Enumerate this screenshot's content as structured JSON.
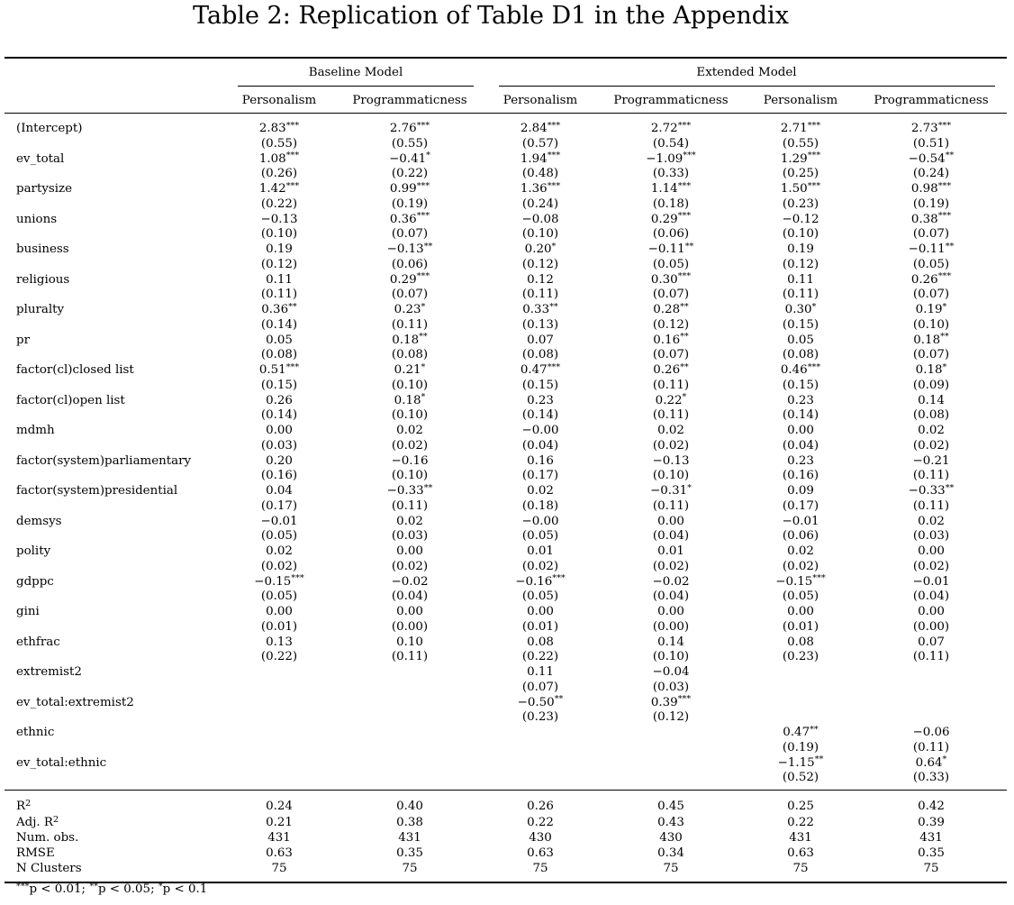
{
  "title": "Table 2:  Replication of Table D1 in the Appendix",
  "groups": [
    {
      "label": "Baseline Model"
    },
    {
      "label": "Extended Model"
    }
  ],
  "columns": [
    "Personalism",
    "Programmaticness",
    "Personalism",
    "Programmaticness",
    "Personalism",
    "Programmaticness"
  ],
  "rows": [
    {
      "label": "(Intercept)",
      "coef": [
        [
          "2.83",
          "***"
        ],
        [
          "2.76",
          "***"
        ],
        [
          "2.84",
          "***"
        ],
        [
          "2.72",
          "***"
        ],
        [
          "2.71",
          "***"
        ],
        [
          "2.73",
          "***"
        ]
      ],
      "se": [
        "(0.55)",
        "(0.55)",
        "(0.57)",
        "(0.54)",
        "(0.55)",
        "(0.51)"
      ]
    },
    {
      "label": "ev_total",
      "coef": [
        [
          "1.08",
          "***"
        ],
        [
          "−0.41",
          "*"
        ],
        [
          "1.94",
          "***"
        ],
        [
          "−1.09",
          "***"
        ],
        [
          "1.29",
          "***"
        ],
        [
          "−0.54",
          "**"
        ]
      ],
      "se": [
        "(0.26)",
        "(0.22)",
        "(0.48)",
        "(0.33)",
        "(0.25)",
        "(0.24)"
      ]
    },
    {
      "label": "partysize",
      "coef": [
        [
          "1.42",
          "***"
        ],
        [
          "0.99",
          "***"
        ],
        [
          "1.36",
          "***"
        ],
        [
          "1.14",
          "***"
        ],
        [
          "1.50",
          "***"
        ],
        [
          "0.98",
          "***"
        ]
      ],
      "se": [
        "(0.22)",
        "(0.19)",
        "(0.24)",
        "(0.18)",
        "(0.23)",
        "(0.19)"
      ]
    },
    {
      "label": "unions",
      "coef": [
        [
          "−0.13",
          ""
        ],
        [
          "0.36",
          "***"
        ],
        [
          "−0.08",
          ""
        ],
        [
          "0.29",
          "***"
        ],
        [
          "−0.12",
          ""
        ],
        [
          "0.38",
          "***"
        ]
      ],
      "se": [
        "(0.10)",
        "(0.07)",
        "(0.10)",
        "(0.06)",
        "(0.10)",
        "(0.07)"
      ]
    },
    {
      "label": "business",
      "coef": [
        [
          "0.19",
          ""
        ],
        [
          "−0.13",
          "**"
        ],
        [
          "0.20",
          "*"
        ],
        [
          "−0.11",
          "**"
        ],
        [
          "0.19",
          ""
        ],
        [
          "−0.11",
          "**"
        ]
      ],
      "se": [
        "(0.12)",
        "(0.06)",
        "(0.12)",
        "(0.05)",
        "(0.12)",
        "(0.05)"
      ]
    },
    {
      "label": "religious",
      "coef": [
        [
          "0.11",
          ""
        ],
        [
          "0.29",
          "***"
        ],
        [
          "0.12",
          ""
        ],
        [
          "0.30",
          "***"
        ],
        [
          "0.11",
          ""
        ],
        [
          "0.26",
          "***"
        ]
      ],
      "se": [
        "(0.11)",
        "(0.07)",
        "(0.11)",
        "(0.07)",
        "(0.11)",
        "(0.07)"
      ]
    },
    {
      "label": "pluralty",
      "coef": [
        [
          "0.36",
          "**"
        ],
        [
          "0.23",
          "*"
        ],
        [
          "0.33",
          "**"
        ],
        [
          "0.28",
          "**"
        ],
        [
          "0.30",
          "*"
        ],
        [
          "0.19",
          "*"
        ]
      ],
      "se": [
        "(0.14)",
        "(0.11)",
        "(0.13)",
        "(0.12)",
        "(0.15)",
        "(0.10)"
      ]
    },
    {
      "label": "pr",
      "coef": [
        [
          "0.05",
          ""
        ],
        [
          "0.18",
          "**"
        ],
        [
          "0.07",
          ""
        ],
        [
          "0.16",
          "**"
        ],
        [
          "0.05",
          ""
        ],
        [
          "0.18",
          "**"
        ]
      ],
      "se": [
        "(0.08)",
        "(0.08)",
        "(0.08)",
        "(0.07)",
        "(0.08)",
        "(0.07)"
      ]
    },
    {
      "label": "factor(cl)closed list",
      "coef": [
        [
          "0.51",
          "***"
        ],
        [
          "0.21",
          "*"
        ],
        [
          "0.47",
          "***"
        ],
        [
          "0.26",
          "**"
        ],
        [
          "0.46",
          "***"
        ],
        [
          "0.18",
          "*"
        ]
      ],
      "se": [
        "(0.15)",
        "(0.10)",
        "(0.15)",
        "(0.11)",
        "(0.15)",
        "(0.09)"
      ]
    },
    {
      "label": "factor(cl)open list",
      "coef": [
        [
          "0.26",
          ""
        ],
        [
          "0.18",
          "*"
        ],
        [
          "0.23",
          ""
        ],
        [
          "0.22",
          "*"
        ],
        [
          "0.23",
          ""
        ],
        [
          "0.14",
          ""
        ]
      ],
      "se": [
        "(0.14)",
        "(0.10)",
        "(0.14)",
        "(0.11)",
        "(0.14)",
        "(0.08)"
      ]
    },
    {
      "label": "mdmh",
      "coef": [
        [
          "0.00",
          ""
        ],
        [
          "0.02",
          ""
        ],
        [
          "−0.00",
          ""
        ],
        [
          "0.02",
          ""
        ],
        [
          "0.00",
          ""
        ],
        [
          "0.02",
          ""
        ]
      ],
      "se": [
        "(0.03)",
        "(0.02)",
        "(0.04)",
        "(0.02)",
        "(0.04)",
        "(0.02)"
      ]
    },
    {
      "label": "factor(system)parliamentary",
      "coef": [
        [
          "0.20",
          ""
        ],
        [
          "−0.16",
          ""
        ],
        [
          "0.16",
          ""
        ],
        [
          "−0.13",
          ""
        ],
        [
          "0.23",
          ""
        ],
        [
          "−0.21",
          ""
        ]
      ],
      "se": [
        "(0.16)",
        "(0.10)",
        "(0.17)",
        "(0.10)",
        "(0.16)",
        "(0.11)"
      ]
    },
    {
      "label": "factor(system)presidential",
      "coef": [
        [
          "0.04",
          ""
        ],
        [
          "−0.33",
          "**"
        ],
        [
          "0.02",
          ""
        ],
        [
          "−0.31",
          "*"
        ],
        [
          "0.09",
          ""
        ],
        [
          "−0.33",
          "**"
        ]
      ],
      "se": [
        "(0.17)",
        "(0.11)",
        "(0.18)",
        "(0.11)",
        "(0.17)",
        "(0.11)"
      ]
    },
    {
      "label": "demsys",
      "coef": [
        [
          "−0.01",
          ""
        ],
        [
          "0.02",
          ""
        ],
        [
          "−0.00",
          ""
        ],
        [
          "0.00",
          ""
        ],
        [
          "−0.01",
          ""
        ],
        [
          "0.02",
          ""
        ]
      ],
      "se": [
        "(0.05)",
        "(0.03)",
        "(0.05)",
        "(0.04)",
        "(0.06)",
        "(0.03)"
      ]
    },
    {
      "label": "polity",
      "coef": [
        [
          "0.02",
          ""
        ],
        [
          "0.00",
          ""
        ],
        [
          "0.01",
          ""
        ],
        [
          "0.01",
          ""
        ],
        [
          "0.02",
          ""
        ],
        [
          "0.00",
          ""
        ]
      ],
      "se": [
        "(0.02)",
        "(0.02)",
        "(0.02)",
        "(0.02)",
        "(0.02)",
        "(0.02)"
      ]
    },
    {
      "label": "gdppc",
      "coef": [
        [
          "−0.15",
          "***"
        ],
        [
          "−0.02",
          ""
        ],
        [
          "−0.16",
          "***"
        ],
        [
          "−0.02",
          ""
        ],
        [
          "−0.15",
          "***"
        ],
        [
          "−0.01",
          ""
        ]
      ],
      "se": [
        "(0.05)",
        "(0.04)",
        "(0.05)",
        "(0.04)",
        "(0.05)",
        "(0.04)"
      ]
    },
    {
      "label": "gini",
      "coef": [
        [
          "0.00",
          ""
        ],
        [
          "0.00",
          ""
        ],
        [
          "0.00",
          ""
        ],
        [
          "0.00",
          ""
        ],
        [
          "0.00",
          ""
        ],
        [
          "0.00",
          ""
        ]
      ],
      "se": [
        "(0.01)",
        "(0.00)",
        "(0.01)",
        "(0.00)",
        "(0.01)",
        "(0.00)"
      ]
    },
    {
      "label": "ethfrac",
      "coef": [
        [
          "0.13",
          ""
        ],
        [
          "0.10",
          ""
        ],
        [
          "0.08",
          ""
        ],
        [
          "0.14",
          ""
        ],
        [
          "0.08",
          ""
        ],
        [
          "0.07",
          ""
        ]
      ],
      "se": [
        "(0.22)",
        "(0.11)",
        "(0.22)",
        "(0.10)",
        "(0.23)",
        "(0.11)"
      ]
    },
    {
      "label": "extremist2",
      "coef": [
        [
          "",
          ""
        ],
        [
          "",
          ""
        ],
        [
          "0.11",
          ""
        ],
        [
          "−0.04",
          ""
        ],
        [
          "",
          ""
        ],
        [
          "",
          ""
        ]
      ],
      "se": [
        "",
        "",
        "(0.07)",
        "(0.03)",
        "",
        ""
      ]
    },
    {
      "label": "ev_total:extremist2",
      "coef": [
        [
          "",
          ""
        ],
        [
          "",
          ""
        ],
        [
          "−0.50",
          "**"
        ],
        [
          "0.39",
          "***"
        ],
        [
          "",
          ""
        ],
        [
          "",
          ""
        ]
      ],
      "se": [
        "",
        "",
        "(0.23)",
        "(0.12)",
        "",
        ""
      ]
    },
    {
      "label": "ethnic",
      "coef": [
        [
          "",
          ""
        ],
        [
          "",
          ""
        ],
        [
          "",
          ""
        ],
        [
          "",
          ""
        ],
        [
          "0.47",
          "**"
        ],
        [
          "−0.06",
          ""
        ]
      ],
      "se": [
        "",
        "",
        "",
        "",
        "(0.19)",
        "(0.11)"
      ]
    },
    {
      "label": "ev_total:ethnic",
      "coef": [
        [
          "",
          ""
        ],
        [
          "",
          ""
        ],
        [
          "",
          ""
        ],
        [
          "",
          ""
        ],
        [
          "−1.15",
          "**"
        ],
        [
          "0.64",
          "*"
        ]
      ],
      "se": [
        "",
        "",
        "",
        "",
        "(0.52)",
        "(0.33)"
      ]
    }
  ],
  "stats": [
    {
      "label": "R",
      "sup": "2",
      "values": [
        "0.24",
        "0.40",
        "0.26",
        "0.45",
        "0.25",
        "0.42"
      ]
    },
    {
      "label": "Adj. R",
      "sup": "2",
      "values": [
        "0.21",
        "0.38",
        "0.22",
        "0.43",
        "0.22",
        "0.39"
      ]
    },
    {
      "label": "Num. obs.",
      "sup": "",
      "values": [
        "431",
        "431",
        "430",
        "430",
        "431",
        "431"
      ]
    },
    {
      "label": "RMSE",
      "sup": "",
      "values": [
        "0.63",
        "0.35",
        "0.63",
        "0.34",
        "0.63",
        "0.35"
      ]
    },
    {
      "label": "N Clusters",
      "sup": "",
      "values": [
        "75",
        "75",
        "75",
        "75",
        "75",
        "75"
      ]
    }
  ],
  "footnote": [
    {
      "stars": "***",
      "text": "p < 0.01; "
    },
    {
      "stars": "**",
      "text": "p < 0.05; "
    },
    {
      "stars": "*",
      "text": "p < 0.1"
    }
  ]
}
